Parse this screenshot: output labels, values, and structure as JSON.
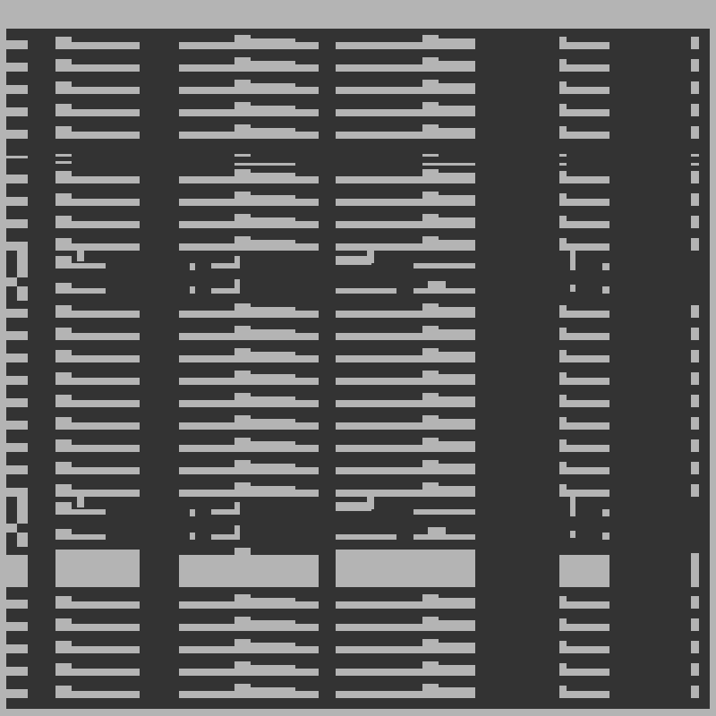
{
  "colors": {
    "background": "#b4b4b4",
    "panel": "#333333",
    "bars": "#b4b4b4"
  }
}
